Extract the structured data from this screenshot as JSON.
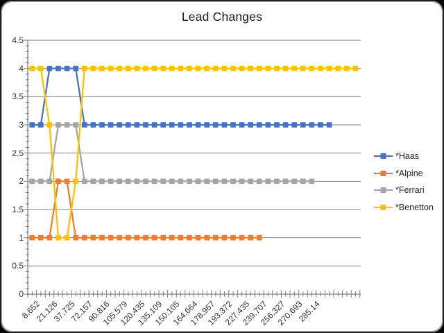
{
  "frame": {
    "outer_background": "#000000",
    "background": "#ffffff",
    "border_color": "#8a8a8a"
  },
  "title": "Lead Changes",
  "axes": {
    "y_tick_labels": [
      "0",
      "0.5",
      "1",
      "1.5",
      "2",
      "2.5",
      "3",
      "3.5",
      "4",
      "4.5"
    ],
    "x_tick_labels": [
      "8.652",
      "21.126",
      "37.725",
      "72.157",
      "90.816",
      "105.579",
      "120.435",
      "135.109",
      "150.105",
      "164.664",
      "178.967",
      "193.372",
      "227.435",
      "239.707",
      "256.327",
      "270.693",
      "285.14"
    ],
    "axis_color": "#808080",
    "gridline_color": "#808080",
    "label_color": "#333333"
  },
  "legend": {
    "position": "right",
    "items": [
      {
        "label": "*Haas",
        "color": "#4472C4"
      },
      {
        "label": "*Alpine",
        "color": "#ED7D31"
      },
      {
        "label": "*Ferrari",
        "color": "#A5A5A5"
      },
      {
        "label": "*Benetton",
        "color": "#FFC000"
      }
    ]
  },
  "chart_data": {
    "type": "line",
    "title": "Lead Changes",
    "marker": "square",
    "grid": "horizontal",
    "legend_position": "right",
    "ylim": [
      0,
      4.5
    ],
    "y_major_step": 0.5,
    "y_minor_step": 0.1,
    "n_categories": 38,
    "x_label_every": 2,
    "x_tick_labels": [
      "8.652",
      "21.126",
      "37.725",
      "72.157",
      "90.816",
      "105.579",
      "120.435",
      "135.109",
      "150.105",
      "164.664",
      "178.967",
      "193.372",
      "227.435",
      "239.707",
      "256.327",
      "270.693",
      "285.14"
    ],
    "series": [
      {
        "name": "*Haas",
        "color": "#4472C4",
        "values": [
          3,
          3,
          4,
          4,
          4,
          4,
          3,
          3,
          3,
          3,
          3,
          3,
          3,
          3,
          3,
          3,
          3,
          3,
          3,
          3,
          3,
          3,
          3,
          3,
          3,
          3,
          3,
          3,
          3,
          3,
          3,
          3,
          3,
          3,
          3
        ]
      },
      {
        "name": "*Alpine",
        "color": "#ED7D31",
        "values": [
          1,
          1,
          1,
          2,
          2,
          1,
          1,
          1,
          1,
          1,
          1,
          1,
          1,
          1,
          1,
          1,
          1,
          1,
          1,
          1,
          1,
          1,
          1,
          1,
          1,
          1,
          1
        ]
      },
      {
        "name": "*Ferrari",
        "color": "#A5A5A5",
        "values": [
          2,
          2,
          2,
          3,
          3,
          3,
          2,
          2,
          2,
          2,
          2,
          2,
          2,
          2,
          2,
          2,
          2,
          2,
          2,
          2,
          2,
          2,
          2,
          2,
          2,
          2,
          2,
          2,
          2,
          2,
          2,
          2,
          2
        ]
      },
      {
        "name": "*Benetton",
        "color": "#FFC000",
        "values": [
          4,
          4,
          3,
          1,
          1,
          2,
          4,
          4,
          4,
          4,
          4,
          4,
          4,
          4,
          4,
          4,
          4,
          4,
          4,
          4,
          4,
          4,
          4,
          4,
          4,
          4,
          4,
          4,
          4,
          4,
          4,
          4,
          4,
          4,
          4,
          4,
          4,
          4
        ]
      }
    ]
  }
}
